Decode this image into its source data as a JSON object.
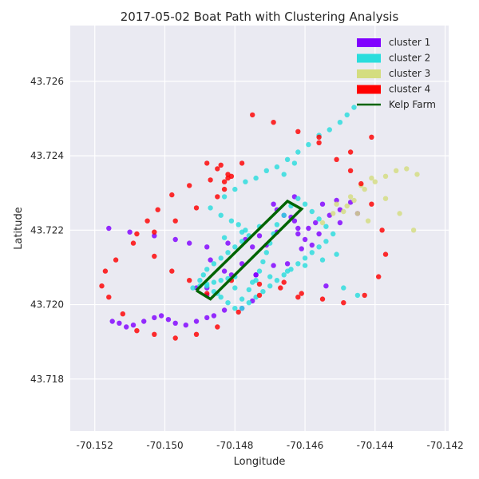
{
  "chart_data": {
    "type": "scatter",
    "title": "2017-05-02 Boat Path with Clustering Analysis",
    "xlabel": "Longitude",
    "ylabel": "Latitude",
    "xlim": [
      -70.1527,
      -70.1419
    ],
    "ylim": [
      43.7166,
      43.7275
    ],
    "xticks": [
      -70.152,
      -70.15,
      -70.148,
      -70.146,
      -70.144,
      -70.142
    ],
    "xtick_labels": [
      "-70.152",
      "-70.150",
      "-70.148",
      "-70.146",
      "-70.144",
      "-70.142"
    ],
    "yticks": [
      43.718,
      43.72,
      43.722,
      43.724,
      43.726
    ],
    "ytick_labels": [
      "43.718",
      "43.720",
      "43.722",
      "43.724",
      "43.726"
    ],
    "grid": true,
    "legend_position": "top-right",
    "colors": {
      "background": "#eaeaf2",
      "grid": "#ffffff"
    },
    "series": [
      {
        "name": "cluster 1",
        "color": "#8000ff",
        "x": [
          -70.1516,
          -70.151,
          -70.1503,
          -70.1497,
          -70.1493,
          -70.1488,
          -70.1482,
          -70.1477,
          -70.1473,
          -70.1468,
          -70.1462,
          -70.1457,
          -70.1453,
          -70.145,
          -70.1513,
          -70.1511,
          -70.1509,
          -70.1506,
          -70.1503,
          -70.1501,
          -70.1499,
          -70.1497,
          -70.1494,
          -70.1491,
          -70.1488,
          -70.1486,
          -70.1483,
          -70.1488,
          -70.1483,
          -70.1478,
          -70.1474,
          -70.1469,
          -70.1465,
          -70.146,
          -70.1456,
          -70.1463,
          -70.1468,
          -70.1475,
          -70.1481,
          -70.1487,
          -70.1491,
          -70.1461,
          -70.1462,
          -70.1464,
          -70.1469,
          -70.1466,
          -70.1459,
          -70.1463,
          -70.1455,
          -70.145,
          -70.1447,
          -70.1445,
          -70.1458,
          -70.1454,
          -70.1471,
          -70.1474,
          -70.1488,
          -70.1478,
          -70.1451,
          -70.1515,
          -70.1475
        ],
        "y": [
          43.72205,
          43.72195,
          43.72185,
          43.72175,
          43.72165,
          43.72155,
          43.72165,
          43.72175,
          43.72185,
          43.72195,
          43.72205,
          43.7222,
          43.7224,
          43.72255,
          43.7195,
          43.7194,
          43.71945,
          43.71955,
          43.71965,
          43.7197,
          43.7196,
          43.7195,
          43.71945,
          43.71955,
          43.71965,
          43.7197,
          43.71985,
          43.72045,
          43.7209,
          43.7211,
          43.7208,
          43.72105,
          43.7211,
          43.72175,
          43.7219,
          43.72225,
          43.72255,
          43.7201,
          43.7208,
          43.7212,
          43.72045,
          43.7215,
          43.7219,
          43.72235,
          43.7227,
          43.7224,
          43.72205,
          43.7229,
          43.7227,
          43.7222,
          43.72275,
          43.72245,
          43.7216,
          43.7205,
          43.7216,
          43.7208,
          43.72025,
          43.7199,
          43.7228,
          43.71955,
          43.72155
        ]
      },
      {
        "name": "cluster 2",
        "color": "#2adddd",
        "x": [
          -70.1487,
          -70.1484,
          -70.1481,
          -70.1479,
          -70.1477,
          -70.1476,
          -70.1478,
          -70.148,
          -70.1482,
          -70.1484,
          -70.1486,
          -70.1488,
          -70.1489,
          -70.149,
          -70.1488,
          -70.1486,
          -70.1484,
          -70.1482,
          -70.148,
          -70.1478,
          -70.1476,
          -70.1474,
          -70.1473,
          -70.1472,
          -70.1471,
          -70.147,
          -70.1469,
          -70.1468,
          -70.1466,
          -70.1464,
          -70.1462,
          -70.146,
          -70.1458,
          -70.1456,
          -70.1454,
          -70.1452,
          -70.1454,
          -70.1456,
          -70.1458,
          -70.146,
          -70.1462,
          -70.1464,
          -70.1466,
          -70.1468,
          -70.147,
          -70.1472,
          -70.1474,
          -70.1476,
          -70.1478,
          -70.148,
          -70.1482,
          -70.1484,
          -70.1486,
          -70.1488,
          -70.149,
          -70.1492,
          -70.1483,
          -70.148,
          -70.1477,
          -70.1474,
          -70.1471,
          -70.1468,
          -70.1465,
          -70.1462,
          -70.1459,
          -70.1456,
          -70.1453,
          -70.145,
          -70.1448,
          -70.1446,
          -70.1451,
          -70.1455,
          -70.146,
          -70.1465,
          -70.147,
          -70.1475,
          -70.148,
          -70.1485,
          -70.1473,
          -70.1478,
          -70.1483,
          -70.1449,
          -70.1445,
          -70.1466,
          -70.1463
        ],
        "y": [
          43.7226,
          43.7224,
          43.72225,
          43.72215,
          43.722,
          43.72185,
          43.7217,
          43.72155,
          43.7214,
          43.72125,
          43.7211,
          43.72095,
          43.7208,
          43.72065,
          43.7205,
          43.72035,
          43.7202,
          43.72005,
          43.7199,
          43.72015,
          43.7204,
          43.72065,
          43.7209,
          43.72115,
          43.7214,
          43.72165,
          43.7219,
          43.72215,
          43.7224,
          43.72265,
          43.72285,
          43.7227,
          43.7225,
          43.7223,
          43.7221,
          43.7219,
          43.7217,
          43.72155,
          43.7214,
          43.72125,
          43.7211,
          43.72095,
          43.7208,
          43.72065,
          43.7205,
          43.72035,
          43.7202,
          43.72005,
          43.7199,
          43.72075,
          43.7207,
          43.72065,
          43.7206,
          43.72055,
          43.7205,
          43.72045,
          43.7229,
          43.7231,
          43.7233,
          43.7234,
          43.7236,
          43.7237,
          43.7239,
          43.7241,
          43.7243,
          43.72455,
          43.7247,
          43.7249,
          43.7251,
          43.7253,
          43.72135,
          43.7212,
          43.72105,
          43.7209,
          43.72075,
          43.7206,
          43.72045,
          43.7203,
          43.7221,
          43.72195,
          43.7218,
          43.72045,
          43.72025,
          43.7235,
          43.7238
        ]
      },
      {
        "name": "cluster 3",
        "color": "#d4dd80",
        "x": [
          -70.1449,
          -70.1446,
          -70.1443,
          -70.144,
          -70.1437,
          -70.1434,
          -70.1431,
          -70.1428,
          -70.1452,
          -70.1455,
          -70.1447,
          -70.1444,
          -70.1441,
          -70.1437,
          -70.1433,
          -70.1429,
          -70.1451,
          -70.1448,
          -70.1445,
          -70.1442
        ],
        "y": [
          43.7225,
          43.7228,
          43.7231,
          43.7233,
          43.72345,
          43.7236,
          43.72365,
          43.7235,
          43.72245,
          43.7222,
          43.7229,
          43.7232,
          43.7234,
          43.72285,
          43.72245,
          43.722,
          43.7227,
          43.72265,
          43.72245,
          43.72225
        ]
      },
      {
        "name": "cluster 4",
        "color": "#ff0000",
        "x": [
          -70.1475,
          -70.1469,
          -70.1462,
          -70.1456,
          -70.1451,
          -70.1447,
          -70.1444,
          -70.1441,
          -70.1438,
          -70.1437,
          -70.1439,
          -70.1443,
          -70.1449,
          -70.1455,
          -70.1461,
          -70.1467,
          -70.1473,
          -70.1479,
          -70.1485,
          -70.1491,
          -70.1497,
          -70.1503,
          -70.1508,
          -70.1512,
          -70.1516,
          -70.1518,
          -70.1517,
          -70.1514,
          -70.1509,
          -70.1503,
          -70.1497,
          -70.1491,
          -70.1485,
          -70.1482,
          -70.1484,
          -70.1488,
          -70.1493,
          -70.1498,
          -70.1502,
          -70.1505,
          -70.1508,
          -70.1503,
          -70.1498,
          -70.1493,
          -70.1488,
          -70.1481,
          -70.1473,
          -70.1466,
          -70.1462,
          -70.1485,
          -70.1483,
          -70.1482,
          -70.1481,
          -70.1487,
          -70.1483,
          -70.1478,
          -70.1456,
          -70.1447,
          -70.1441
        ],
        "y": [
          43.7251,
          43.7249,
          43.72465,
          43.72435,
          43.7239,
          43.7236,
          43.72325,
          43.7227,
          43.722,
          43.72135,
          43.72075,
          43.72025,
          43.72005,
          43.72015,
          43.7203,
          43.72045,
          43.72055,
          43.7198,
          43.7194,
          43.7192,
          43.7191,
          43.7192,
          43.7193,
          43.71975,
          43.7202,
          43.7205,
          43.7209,
          43.7212,
          43.72165,
          43.72195,
          43.72225,
          43.7226,
          43.7229,
          43.7234,
          43.72375,
          43.7238,
          43.7232,
          43.72295,
          43.72255,
          43.72225,
          43.7219,
          43.7213,
          43.7209,
          43.72065,
          43.7203,
          43.72065,
          43.72025,
          43.7206,
          43.7202,
          43.72365,
          43.7233,
          43.7235,
          43.72345,
          43.72335,
          43.7231,
          43.7238,
          43.7245,
          43.7241,
          43.7245
        ]
      }
    ],
    "lines": [
      {
        "name": "Kelp Farm",
        "color": "#006400",
        "x": [
          -70.1491,
          -70.1465,
          -70.1461,
          -70.1487,
          -70.1491
        ],
        "y": [
          43.72038,
          43.72278,
          43.72257,
          43.72015,
          43.72038
        ]
      }
    ],
    "legend": [
      {
        "label": "cluster 1",
        "kind": "patch",
        "color": "#8000ff"
      },
      {
        "label": "cluster 2",
        "kind": "patch",
        "color": "#2adddd"
      },
      {
        "label": "cluster 3",
        "kind": "patch",
        "color": "#d4dd80"
      },
      {
        "label": "cluster 4",
        "kind": "patch",
        "color": "#ff0000"
      },
      {
        "label": "Kelp Farm",
        "kind": "line",
        "color": "#006400"
      }
    ]
  }
}
